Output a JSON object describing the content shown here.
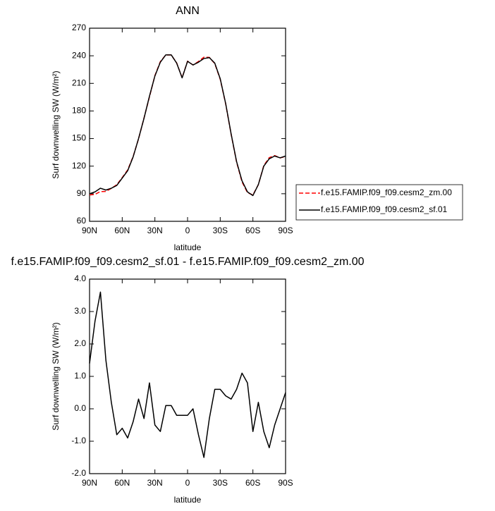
{
  "chart_data": [
    {
      "type": "line",
      "title": "ANN",
      "x_label": "latitude",
      "y_label": "Surf downwelling SW (W/m²)",
      "x": [
        90,
        85,
        80,
        75,
        70,
        65,
        60,
        55,
        50,
        45,
        40,
        35,
        30,
        25,
        20,
        15,
        10,
        5,
        0,
        -5,
        -10,
        -15,
        -20,
        -25,
        -30,
        -35,
        -40,
        -45,
        -50,
        -55,
        -60,
        -65,
        -70,
        -75,
        -80,
        -85,
        -90
      ],
      "xlim": [
        90,
        -90
      ],
      "xticks": [
        {
          "value": 90,
          "label": "90N"
        },
        {
          "value": 60,
          "label": "60N"
        },
        {
          "value": 30,
          "label": "30N"
        },
        0,
        {
          "value": -30,
          "label": "30S"
        },
        {
          "value": -60,
          "label": "60S"
        },
        {
          "value": -90,
          "label": "90S"
        }
      ],
      "ylim": [
        60,
        270
      ],
      "yticks": [
        60,
        90,
        120,
        150,
        180,
        210,
        240,
        270
      ],
      "legend": "right",
      "series": [
        {
          "name": "f.e15.FAMIP.f09_f09.cesm2_zm.00",
          "color": "#ff0000",
          "line_style": "dashed",
          "values": [
            88.6,
            89.3,
            92.4,
            92.5,
            95.8,
            99.8,
            107.6,
            115.9,
            130.4,
            149.7,
            172.3,
            195.2,
            218.5,
            233.7,
            240.9,
            240.9,
            232.2,
            216.2,
            234.2,
            230,
            233.8,
            238.5,
            238.3,
            231.4,
            214.4,
            187.6,
            154.7,
            124.4,
            102.9,
            91.2,
            88.7,
            99.8,
            120.7,
            129.2,
            131.5,
            129,
            130.5
          ]
        },
        {
          "name": "f.e15.FAMIP.f09_f09.cesm2_sf.01",
          "color": "#000000",
          "line_style": "solid",
          "values": [
            90,
            92,
            96,
            94,
            96,
            99,
            107,
            115,
            130,
            150,
            172,
            196,
            218,
            233,
            241,
            241,
            232,
            216,
            234,
            230,
            233,
            237,
            238,
            232,
            215,
            188,
            155,
            125,
            104,
            92,
            88,
            100,
            120,
            128,
            131,
            129,
            131
          ]
        }
      ]
    },
    {
      "type": "line",
      "title": "f.e15.FAMIP.f09_f09.cesm2_sf.01 - f.e15.FAMIP.f09_f09.cesm2_zm.00",
      "x_label": "latitude",
      "y_label": "Surf downwelling SW (W/m²)",
      "x": [
        90,
        85,
        80,
        75,
        70,
        65,
        60,
        55,
        50,
        45,
        40,
        35,
        30,
        25,
        20,
        15,
        10,
        5,
        0,
        -5,
        -10,
        -15,
        -20,
        -25,
        -30,
        -35,
        -40,
        -45,
        -50,
        -55,
        -60,
        -65,
        -70,
        -75,
        -80,
        -85,
        -90
      ],
      "xlim": [
        90,
        -90
      ],
      "xticks": [
        {
          "value": 90,
          "label": "90N"
        },
        {
          "value": 60,
          "label": "60N"
        },
        {
          "value": 30,
          "label": "30N"
        },
        0,
        {
          "value": -30,
          "label": "30S"
        },
        {
          "value": -60,
          "label": "60S"
        },
        {
          "value": -90,
          "label": "90S"
        }
      ],
      "ylim": [
        -2,
        4
      ],
      "yticks": [
        {
          "value": -2,
          "label": "-2.0"
        },
        {
          "value": -1,
          "label": "-1.0"
        },
        {
          "value": 0,
          "label": "0.0"
        },
        {
          "value": 1,
          "label": "1.0"
        },
        {
          "value": 2,
          "label": "2.0"
        },
        {
          "value": 3,
          "label": "3.0"
        },
        {
          "value": 4,
          "label": "4.0"
        }
      ],
      "series": [
        {
          "color": "#000000",
          "line_style": "solid",
          "values": [
            1.4,
            2.7,
            3.6,
            1.5,
            0.2,
            -0.8,
            -0.6,
            -0.9,
            -0.4,
            0.3,
            -0.3,
            0.8,
            -0.5,
            -0.7,
            0.1,
            0.1,
            -0.2,
            -0.2,
            -0.2,
            0.0,
            -0.8,
            -1.5,
            -0.3,
            0.6,
            0.6,
            0.4,
            0.3,
            0.6,
            1.1,
            0.8,
            -0.7,
            0.2,
            -0.7,
            -1.2,
            -0.5,
            0.0,
            0.5
          ]
        }
      ]
    }
  ]
}
